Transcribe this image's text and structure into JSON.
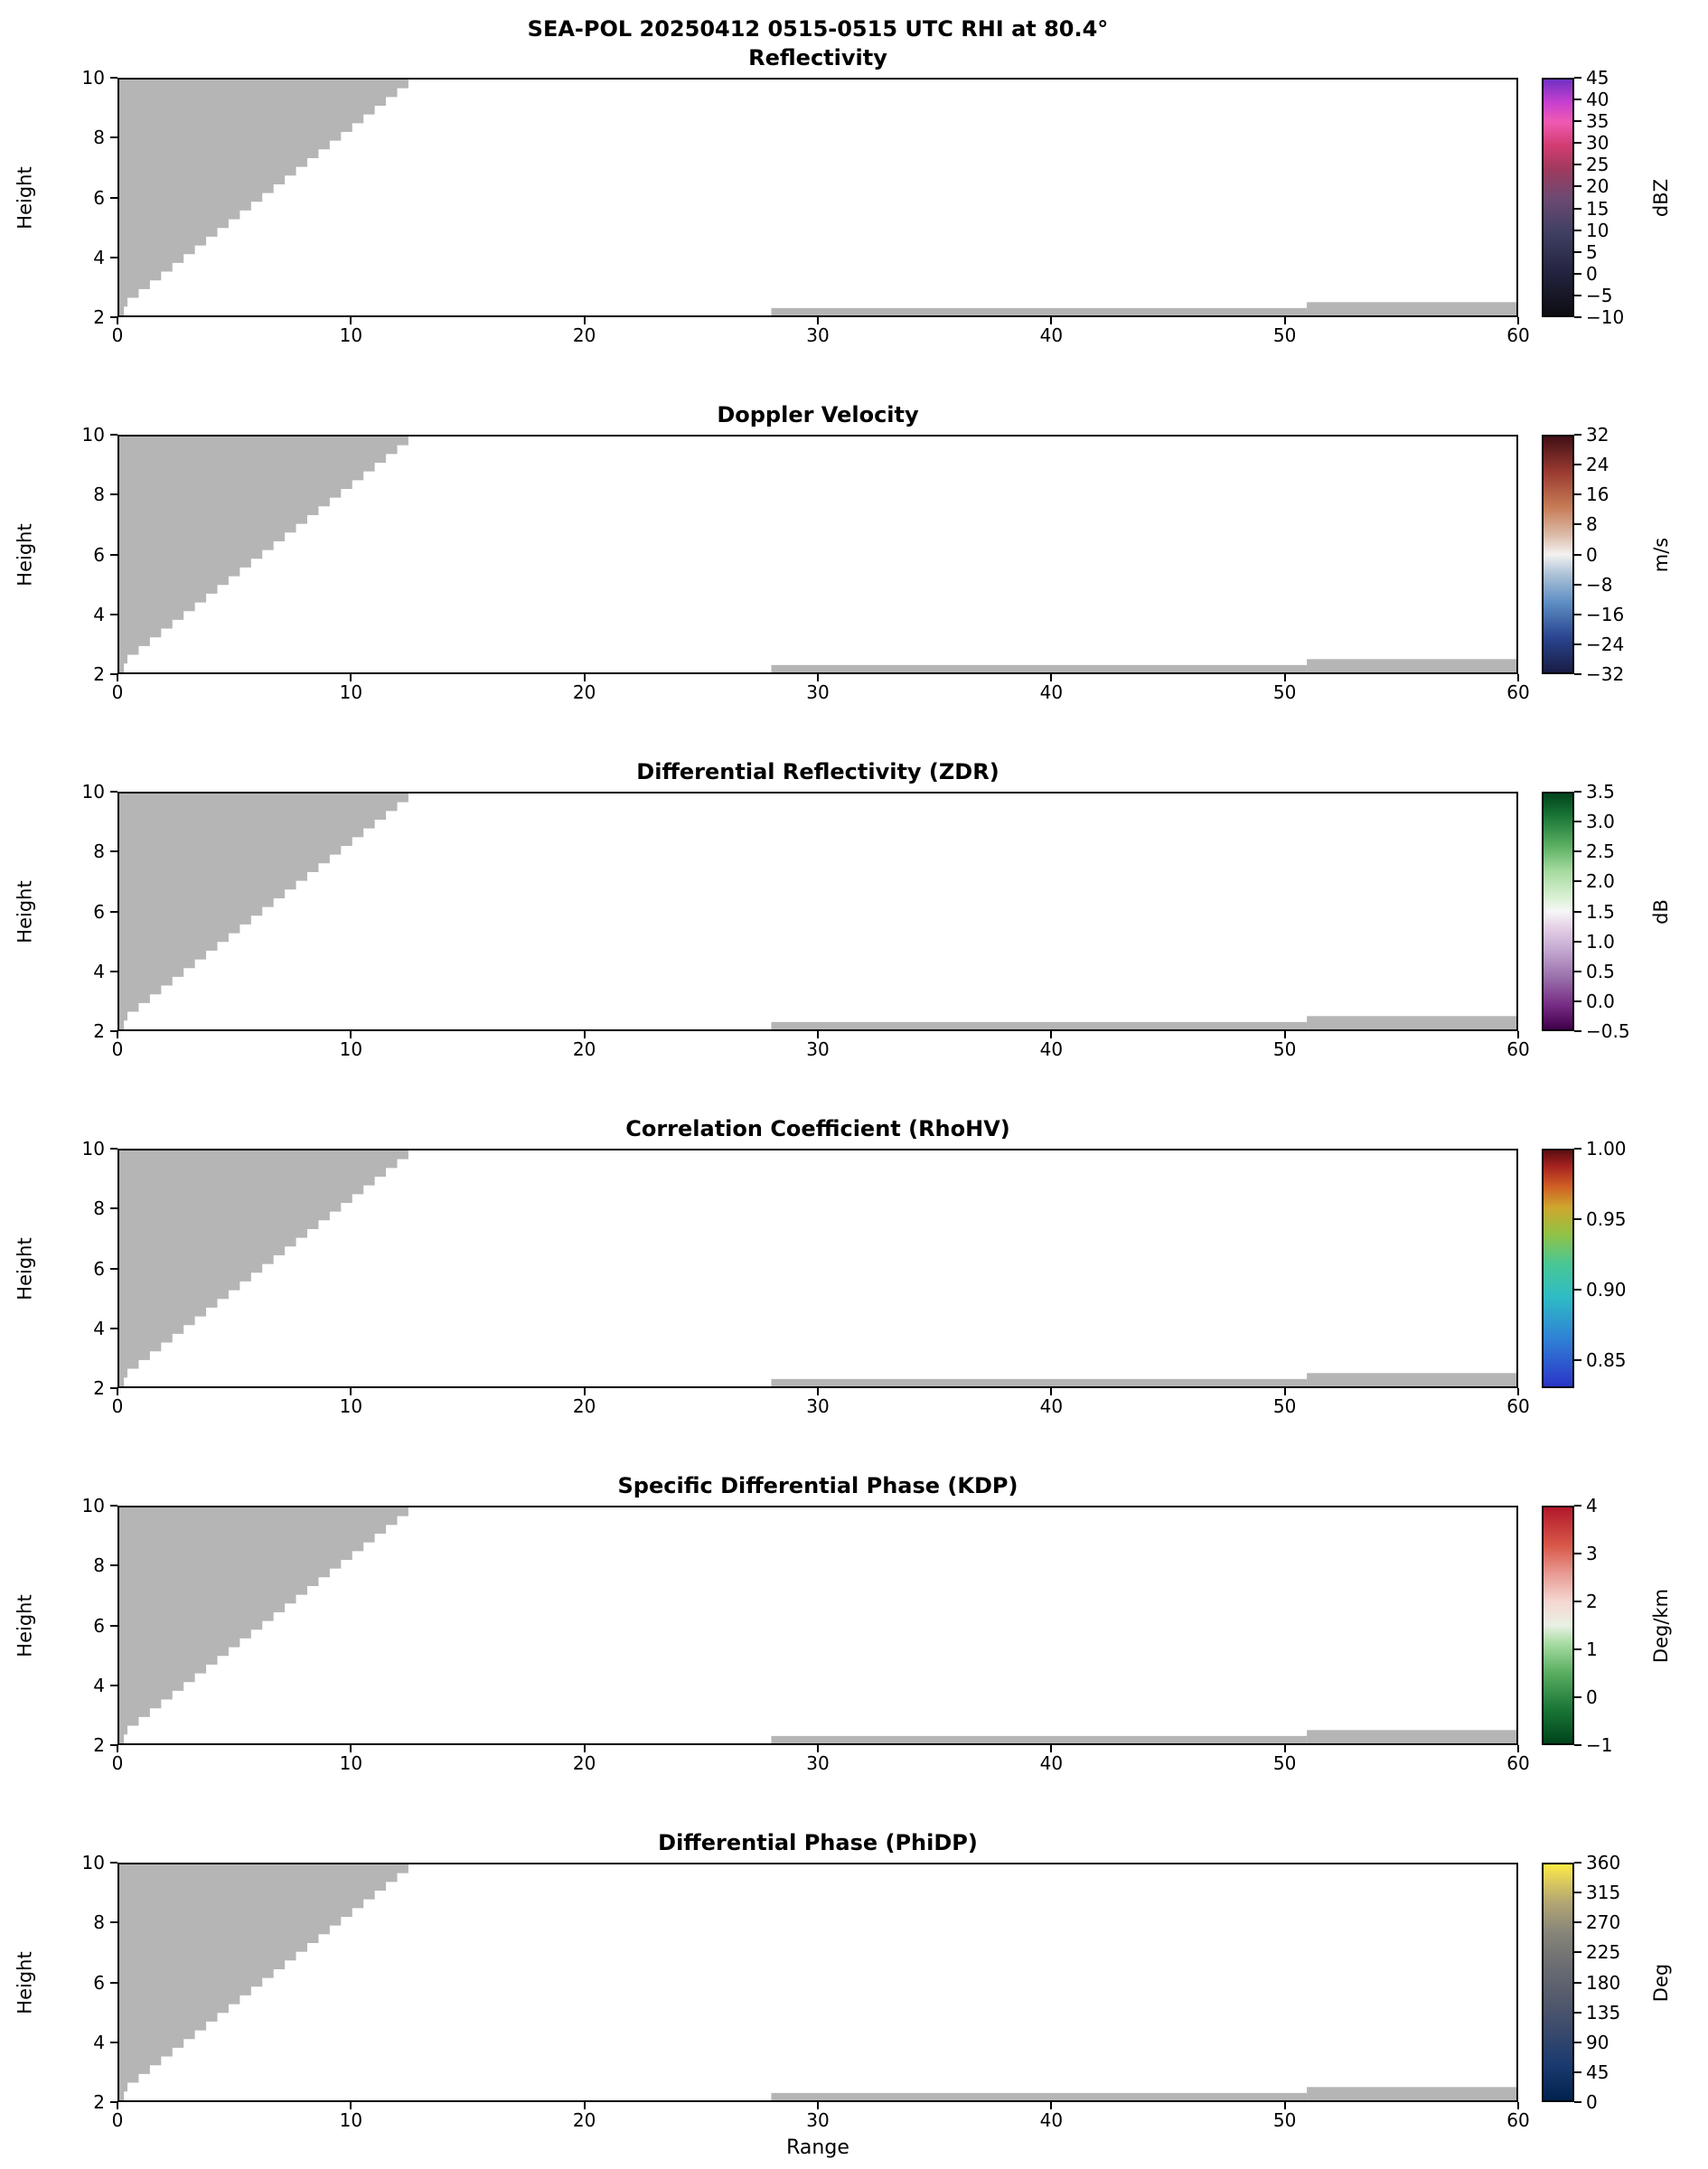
{
  "figure": {
    "suptitle": "SEA-POL 20250412 0515-0515 UTC RHI at 80.4°",
    "xlabel": "Range",
    "ylabel": "Height"
  },
  "axes": {
    "x_range": [
      0,
      60
    ],
    "y_range": [
      2,
      10
    ],
    "x_tick_values": [
      0,
      10,
      20,
      30,
      40,
      50,
      60
    ],
    "x_tick_labels": [
      "0",
      "10",
      "20",
      "30",
      "40",
      "50",
      "60"
    ],
    "y_tick_values": [
      10,
      8,
      6,
      4,
      2
    ],
    "y_tick_labels": [
      "10",
      "8",
      "6",
      "4",
      "2"
    ]
  },
  "colors": {
    "background": "#ffffff",
    "axis": "#000000",
    "no_data_gray": "#b5b5b5"
  },
  "panels": [
    {
      "title": "Reflectivity",
      "unit": "dBZ",
      "cb_range": [
        -10,
        45
      ],
      "cb_tick_values": [
        45,
        40,
        35,
        30,
        25,
        20,
        15,
        10,
        5,
        0,
        -5,
        -10
      ],
      "cb_tick_labels": [
        "45",
        "40",
        "35",
        "30",
        "25",
        "20",
        "15",
        "10",
        "5",
        "0",
        "−5",
        "−10"
      ],
      "cb_gradient": [
        [
          0.0,
          "#0d0d12"
        ],
        [
          0.18,
          "#23233f"
        ],
        [
          0.35,
          "#3f3f63"
        ],
        [
          0.5,
          "#6e4a72"
        ],
        [
          0.62,
          "#a03a5e"
        ],
        [
          0.72,
          "#d23c72"
        ],
        [
          0.82,
          "#ef5ab2"
        ],
        [
          0.9,
          "#c940cf"
        ],
        [
          1.0,
          "#7031c4"
        ]
      ]
    },
    {
      "title": "Doppler Velocity",
      "unit": "m/s",
      "cb_range": [
        -32,
        32
      ],
      "cb_tick_values": [
        32,
        24,
        16,
        8,
        0,
        -8,
        -16,
        -24,
        -32
      ],
      "cb_tick_labels": [
        "32",
        "24",
        "16",
        "8",
        "0",
        "−8",
        "−16",
        "−24",
        "−32"
      ],
      "cb_gradient": [
        [
          0.0,
          "#191d44"
        ],
        [
          0.15,
          "#2a4590"
        ],
        [
          0.3,
          "#5f90c4"
        ],
        [
          0.42,
          "#b0c4d8"
        ],
        [
          0.5,
          "#f3f2f1"
        ],
        [
          0.58,
          "#ddbcab"
        ],
        [
          0.7,
          "#c67c57"
        ],
        [
          0.85,
          "#9a3a30"
        ],
        [
          1.0,
          "#421016"
        ]
      ]
    },
    {
      "title": "Differential Reflectivity (ZDR)",
      "unit": "dB",
      "cb_range": [
        -0.5,
        3.5
      ],
      "cb_tick_values": [
        3.5,
        3.0,
        2.5,
        2.0,
        1.5,
        1.0,
        0.5,
        0.0,
        -0.5
      ],
      "cb_tick_labels": [
        "3.5",
        "3.0",
        "2.5",
        "2.0",
        "1.5",
        "1.0",
        "0.5",
        "0.0",
        "−0.5"
      ],
      "cb_gradient": [
        [
          0.0,
          "#40004b"
        ],
        [
          0.1,
          "#762a83"
        ],
        [
          0.22,
          "#9970ab"
        ],
        [
          0.33,
          "#c2a5cf"
        ],
        [
          0.44,
          "#e7d4e8"
        ],
        [
          0.5,
          "#f7f7f7"
        ],
        [
          0.56,
          "#d9f0d3"
        ],
        [
          0.67,
          "#a6dba0"
        ],
        [
          0.78,
          "#5aae61"
        ],
        [
          0.9,
          "#1b7837"
        ],
        [
          1.0,
          "#00441b"
        ]
      ]
    },
    {
      "title": "Correlation Coefficient (RhoHV)",
      "unit": "",
      "cb_range": [
        0.83,
        1.0
      ],
      "cb_tick_values": [
        1.0,
        0.95,
        0.9,
        0.85
      ],
      "cb_tick_labels": [
        "1.00",
        "0.95",
        "0.90",
        "0.85"
      ],
      "cb_gradient": [
        [
          0.0,
          "#2b35c8"
        ],
        [
          0.2,
          "#2f80d6"
        ],
        [
          0.38,
          "#2fbcc4"
        ],
        [
          0.52,
          "#49c795"
        ],
        [
          0.65,
          "#94c243"
        ],
        [
          0.76,
          "#cfa62e"
        ],
        [
          0.85,
          "#cf5d24"
        ],
        [
          0.93,
          "#a82420"
        ],
        [
          1.0,
          "#5c0d10"
        ]
      ]
    },
    {
      "title": "Specific Differential Phase (KDP)",
      "unit": "Deg/km",
      "cb_range": [
        -1,
        4
      ],
      "cb_tick_values": [
        4,
        3,
        2,
        1,
        0,
        -1
      ],
      "cb_tick_labels": [
        "4",
        "3",
        "2",
        "1",
        "0",
        "−1"
      ],
      "cb_gradient": [
        [
          0.0,
          "#00441b"
        ],
        [
          0.15,
          "#1b7837"
        ],
        [
          0.3,
          "#5aae61"
        ],
        [
          0.42,
          "#a6dba0"
        ],
        [
          0.5,
          "#e9f0e4"
        ],
        [
          0.6,
          "#f6d7d2"
        ],
        [
          0.72,
          "#e89a93"
        ],
        [
          0.84,
          "#d85748"
        ],
        [
          1.0,
          "#b2182b"
        ]
      ]
    },
    {
      "title": "Differential Phase (PhiDP)",
      "unit": "Deg",
      "cb_range": [
        0,
        360
      ],
      "cb_tick_values": [
        360,
        315,
        270,
        225,
        180,
        135,
        90,
        45,
        0
      ],
      "cb_tick_labels": [
        "360",
        "315",
        "270",
        "225",
        "180",
        "135",
        "90",
        "45",
        "0"
      ],
      "cb_gradient": [
        [
          0.0,
          "#00224e"
        ],
        [
          0.15,
          "#1a3a70"
        ],
        [
          0.3,
          "#3b4a6b"
        ],
        [
          0.45,
          "#575d6d"
        ],
        [
          0.6,
          "#707173"
        ],
        [
          0.72,
          "#8a8779"
        ],
        [
          0.84,
          "#b3a772"
        ],
        [
          0.93,
          "#dccb5d"
        ],
        [
          1.0,
          "#fdea45"
        ]
      ]
    }
  ],
  "chart_data": {
    "type": "heatmap",
    "title": "SEA-POL 20250412 0515-0515 UTC RHI at 80.4°",
    "xlabel": "Range",
    "ylabel": "Height",
    "x_range": [
      0,
      60
    ],
    "y_range": [
      2,
      10
    ],
    "x_ticks": [
      0,
      10,
      20,
      30,
      40,
      50,
      60
    ],
    "y_ticks": [
      2,
      4,
      6,
      8,
      10
    ],
    "grid": false,
    "legend_position": "right-colorbars",
    "panels": [
      {
        "title": "Reflectivity",
        "unit": "dBZ",
        "range": [
          -10,
          45
        ]
      },
      {
        "title": "Doppler Velocity",
        "unit": "m/s",
        "range": [
          -32,
          32
        ]
      },
      {
        "title": "Differential Reflectivity (ZDR)",
        "unit": "dB",
        "range": [
          -0.5,
          3.5
        ]
      },
      {
        "title": "Correlation Coefficient (RhoHV)",
        "unit": "",
        "range": [
          0.83,
          1.0
        ]
      },
      {
        "title": "Specific Differential Phase (KDP)",
        "unit": "Deg/km",
        "range": [
          -1,
          4
        ]
      },
      {
        "title": "Differential Phase (PhiDP)",
        "unit": "Deg",
        "range": [
          0,
          360
        ]
      }
    ],
    "note": "All six RHI panels contain no colored echo data; only identical gray no-data/blanked regions are visible.",
    "no_data_regions": {
      "color": "#b5b5b5",
      "wedge": {
        "x_start": 0,
        "x_end": 12.9,
        "x_bottom": 0.35,
        "y_bottom_left": 2.3,
        "y_top": 10,
        "stepped": true,
        "steps": 26,
        "notch": {
          "x_end": 0.2,
          "y_bottom": 2.0
        }
      },
      "strips": [
        {
          "x_start": 28,
          "x_end": 51,
          "y_bottom": 2.0,
          "y_top": 2.25
        },
        {
          "x_start": 51,
          "x_end": 60,
          "y_bottom": 2.0,
          "y_top": 2.45
        }
      ]
    }
  }
}
